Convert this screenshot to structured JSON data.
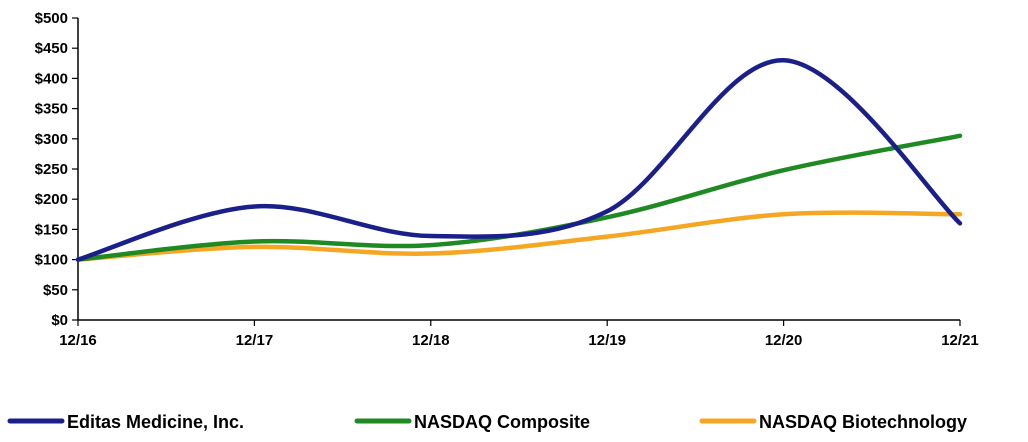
{
  "chart_data": {
    "type": "line",
    "title": "",
    "xlabel": "",
    "ylabel": "",
    "categories": [
      "12/16",
      "12/17",
      "12/18",
      "12/19",
      "12/20",
      "12/21"
    ],
    "y_tick_labels": [
      "$0",
      "$50",
      "$100",
      "$150",
      "$200",
      "$250",
      "$300",
      "$350",
      "$400",
      "$450",
      "$500"
    ],
    "ylim": [
      0,
      500
    ],
    "grid": false,
    "legend_position": "bottom",
    "series": [
      {
        "name": "Editas Medicine, Inc.",
        "color": "#1b1f8a",
        "values": [
          100,
          188,
          139,
          180,
          430,
          160
        ]
      },
      {
        "name": "NASDAQ Composite",
        "color": "#1f8a22",
        "values": [
          100,
          130,
          124,
          170,
          248,
          305
        ]
      },
      {
        "name": "NASDAQ Biotechnology",
        "color": "#f5a623",
        "values": [
          100,
          121,
          110,
          138,
          175,
          175
        ]
      }
    ]
  }
}
